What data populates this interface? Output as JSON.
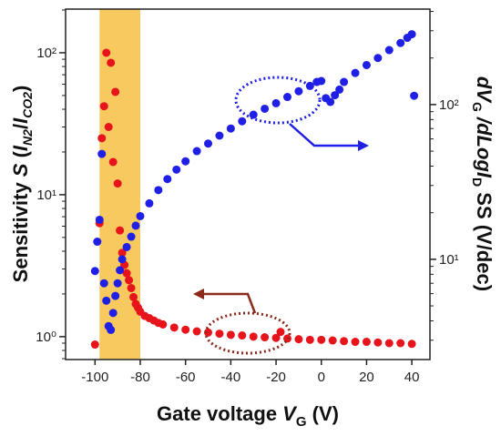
{
  "chart_data": {
    "type": "scatter",
    "xlabel": [
      "Gate voltage ",
      "V",
      "G",
      " (V)"
    ],
    "ylabel": [
      "Sensitivity ",
      "S",
      " (",
      "I",
      "N2",
      "/",
      "I",
      "CO2",
      ")"
    ],
    "y2label": [
      "dV",
      "G",
      " /dLog",
      "I",
      "D",
      " SS (V/dec)"
    ],
    "xlim": [
      -113,
      48
    ],
    "xticks": [
      -100,
      -80,
      -60,
      -40,
      -20,
      0,
      20,
      40
    ],
    "ylim": [
      0.69,
      203
    ],
    "yscale": "log",
    "yticks": [
      {
        "value": 1,
        "label": "10⁰"
      },
      {
        "value": 10,
        "label": "10¹"
      },
      {
        "value": 100,
        "label": "10²"
      }
    ],
    "yminorticks": [
      0.7,
      0.8,
      0.9,
      2,
      3,
      4,
      5,
      6,
      7,
      8,
      9,
      20,
      30,
      40,
      50,
      60,
      70,
      80,
      90,
      200
    ],
    "y2lim": [
      2.25,
      414
    ],
    "y2scale": "log",
    "y2ticks": [
      {
        "value": 10,
        "label": "10¹"
      },
      {
        "value": 100,
        "label": "10²"
      }
    ],
    "y2minorticks": [
      3,
      4,
      5,
      6,
      7,
      8,
      9,
      20,
      30,
      40,
      50,
      60,
      70,
      80,
      90,
      200,
      300,
      400
    ],
    "highlight_x": [
      -98,
      -80
    ],
    "highlight_color": "#f7c95e",
    "series": [
      {
        "color": "#e8141c",
        "x": [
          -100,
          -98,
          -97,
          -96,
          -95,
          -94,
          -93,
          -92,
          -91,
          -90,
          -89,
          -88,
          -87,
          -86,
          -85,
          -84,
          -83,
          -82,
          -81,
          -80,
          -78,
          -76,
          -74,
          -72,
          -70,
          -65,
          -60,
          -55,
          -50,
          -45,
          -40,
          -35,
          -30,
          -25,
          -20,
          -18,
          -15,
          -10,
          -5,
          0,
          5,
          10,
          15,
          20,
          25,
          30,
          35,
          40
        ],
        "values": [
          0.88,
          6.3,
          25,
          42,
          100,
          30,
          85,
          17,
          53,
          12,
          5.6,
          3.9,
          3.2,
          2.8,
          2.5,
          2.2,
          1.9,
          1.7,
          1.6,
          1.5,
          1.4,
          1.35,
          1.3,
          1.25,
          1.22,
          1.16,
          1.12,
          1.09,
          1.07,
          1.05,
          1.03,
          1.02,
          1.0,
          0.99,
          0.98,
          1.08,
          0.97,
          0.96,
          0.95,
          0.95,
          0.94,
          0.93,
          0.92,
          0.92,
          0.91,
          0.9,
          0.9,
          0.89
        ]
      },
      {
        "color": "#1f1fe6",
        "axis": "y2",
        "x": [
          -100,
          -99,
          -98,
          -97,
          -96,
          -95,
          -94,
          -93,
          -92,
          -91,
          -90,
          -89,
          -88,
          -86,
          -84,
          -82,
          -80,
          -76,
          -72,
          -68,
          -64,
          -60,
          -55,
          -50,
          -45,
          -40,
          -35,
          -30,
          -25,
          -20,
          -15,
          -10,
          -5,
          -2,
          0,
          2,
          4,
          6,
          8,
          10,
          15,
          20,
          25,
          30,
          35,
          38,
          40,
          41
        ],
        "values": [
          8.4,
          13,
          18,
          48,
          7,
          5.4,
          3.7,
          3.5,
          4.5,
          5.8,
          7,
          8.5,
          10,
          12,
          14,
          16.5,
          19,
          23,
          28,
          33,
          38,
          43,
          50,
          56,
          63,
          70,
          78,
          86,
          94,
          102,
          112,
          122,
          132,
          140,
          142,
          110,
          104,
          115,
          125,
          140,
          160,
          180,
          200,
          225,
          250,
          270,
          285,
          114
        ]
      }
    ]
  }
}
